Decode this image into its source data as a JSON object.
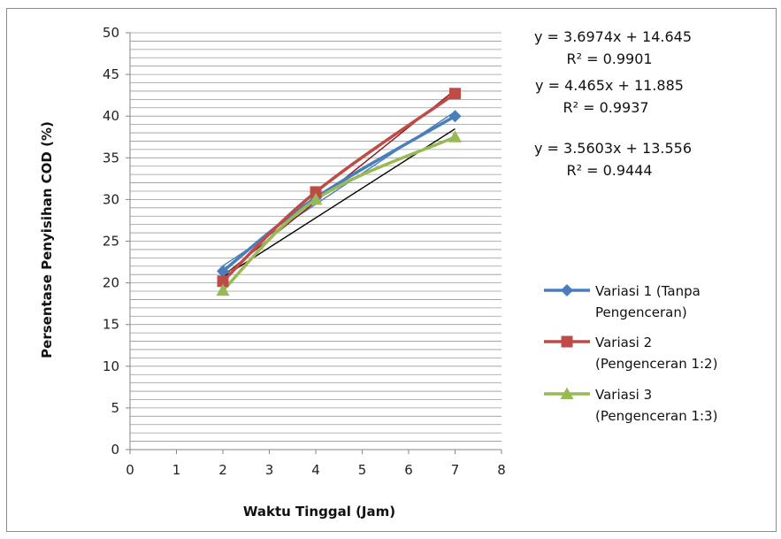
{
  "chart_data": {
    "type": "line",
    "xlabel": "Waktu Tinggal (Jam)",
    "ylabel": "Persentase Penyisihan  COD (%)",
    "xlim": [
      0,
      8
    ],
    "ylim": [
      0,
      50
    ],
    "x_ticks": [
      "0",
      "1",
      "2",
      "3",
      "4",
      "5",
      "6",
      "7",
      "8"
    ],
    "y_ticks": [
      "0",
      "5",
      "10",
      "15",
      "20",
      "25",
      "30",
      "35",
      "40",
      "45",
      "50"
    ],
    "grid": "horizontal minor gridlines",
    "legend_position": "right",
    "series": [
      {
        "name": "Variasi 1 (Tanpa Pengenceran)",
        "legend_lines": [
          "Variasi 1 (Tanpa",
          "Pengenceran)"
        ],
        "color": "#4a7ebb",
        "marker": "diamond",
        "x": [
          2,
          4,
          7
        ],
        "y": [
          21.4,
          30.2,
          40.0
        ]
      },
      {
        "name": "Variasi 2 (Pengenceran 1:2)",
        "legend_lines": [
          "Variasi 2",
          "(Pengenceran 1:2)"
        ],
        "color": "#be4b48",
        "marker": "square",
        "x": [
          2,
          4,
          7
        ],
        "y": [
          20.2,
          30.9,
          42.7
        ]
      },
      {
        "name": "Variasi 3 (Pengenceran 1:3)",
        "legend_lines": [
          "Variasi 3",
          "(Pengenceran 1:3)"
        ],
        "color": "#98b954",
        "marker": "triangle",
        "x": [
          2,
          4,
          7
        ],
        "y": [
          19.1,
          30.0,
          37.5
        ]
      }
    ],
    "trendlines": [
      {
        "color": "#4a7ebb",
        "slope": 3.6974,
        "intercept": 14.645
      },
      {
        "color": "#8b1a1a",
        "slope": 4.465,
        "intercept": 11.885
      },
      {
        "color": "#000000",
        "slope": 3.5603,
        "intercept": 13.556
      }
    ],
    "annotations": [
      {
        "equation": "y = 3.6974x + 14.645",
        "r2": "R² = 0.9901"
      },
      {
        "equation": "y = 4.465x + 11.885",
        "r2": "R² = 0.9937"
      },
      {
        "equation": "y = 3.5603x + 13.556",
        "r2": "R² = 0.9444"
      }
    ]
  }
}
